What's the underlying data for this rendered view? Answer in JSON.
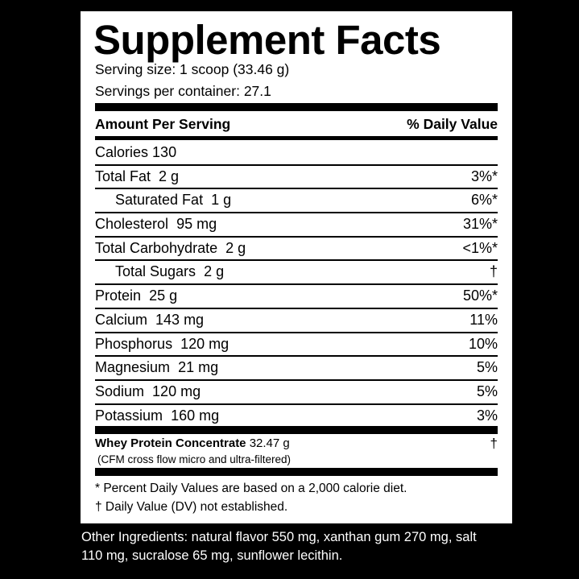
{
  "title": "Supplement Facts",
  "serving_size": "Serving size: 1 scoop (33.46 g)",
  "servings_per_container": "Servings per container: 27.1",
  "header": {
    "amount": "Amount Per Serving",
    "daily_value": "% Daily Value"
  },
  "rows": [
    {
      "name": "Calories",
      "amount": "130",
      "dv": null,
      "indent": false
    },
    {
      "name": "Total Fat",
      "amount": "2 g",
      "dv": "3%*",
      "indent": false
    },
    {
      "name": "Saturated Fat",
      "amount": "1 g",
      "dv": "6%*",
      "indent": true
    },
    {
      "name": "Cholesterol",
      "amount": "95 mg",
      "dv": "31%*",
      "indent": false
    },
    {
      "name": "Total Carbohydrate",
      "amount": "2 g",
      "dv": "<1%*",
      "indent": false
    },
    {
      "name": "Total Sugars",
      "amount": "2 g",
      "dv": "†",
      "indent": true
    },
    {
      "name": "Protein",
      "amount": "25 g",
      "dv": "50%*",
      "indent": false
    },
    {
      "name": "Calcium",
      "amount": "143 mg",
      "dv": "11%",
      "indent": false
    },
    {
      "name": "Phosphorus",
      "amount": "120 mg",
      "dv": "10%",
      "indent": false
    },
    {
      "name": "Magnesium",
      "amount": "21 mg",
      "dv": "5%",
      "indent": false
    },
    {
      "name": "Sodium",
      "amount": "120 mg",
      "dv": "5%",
      "indent": false
    },
    {
      "name": "Potassium",
      "amount": "160 mg",
      "dv": "3%",
      "indent": false
    }
  ],
  "blend": {
    "name": "Whey Protein Concentrate",
    "amount": "32.47 g",
    "dv": "†",
    "note": "(CFM cross flow micro and ultra-filtered)"
  },
  "footnotes": [
    "* Percent Daily Values are based on a 2,000  calorie diet.",
    "† Daily Value (DV) not established."
  ],
  "other_ingredients": "Other Ingredients: natural flavor 550 mg, xanthan gum 270 mg, salt 110 mg, sucralose 65 mg, sunflower lecithin."
}
